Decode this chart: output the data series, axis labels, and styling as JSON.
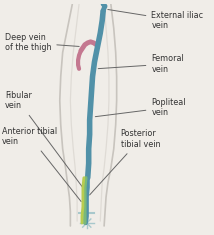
{
  "background_color": "#f0ede8",
  "fig_width": 2.14,
  "fig_height": 2.35,
  "labels": {
    "external_iliac": "External iliac\nvein",
    "femoral": "Femoral\nvein",
    "popliteal": "Popliteal\nvein",
    "deep_vein": "Deep vein\nof the thigh",
    "fibular": "Fibular\nvein",
    "anterior_tibial": "Anterior tibial\nvein",
    "posterior_tibial": "Posterior\ntibial vein"
  },
  "colors": {
    "femoral_vein": "#5191a8",
    "deep_vein_pink": "#c47890",
    "deep_vein_teal": "#4a8fa0",
    "fibular_vein": "#7ab87a",
    "anterior_tibial": "#b8cc50",
    "leg_outline": "#c8c4be",
    "leg_inner": "#d8d4ce",
    "text": "#333333",
    "arrow": "#666666",
    "foot": "#a8c8cc"
  },
  "font_size": 5.8
}
